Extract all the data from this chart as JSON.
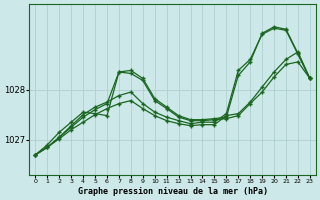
{
  "background_color": "#cce8e8",
  "grid_color": "#aacccc",
  "line_color": "#1a6620",
  "x_ticks": [
    0,
    1,
    2,
    3,
    4,
    5,
    6,
    7,
    8,
    9,
    10,
    11,
    12,
    13,
    14,
    15,
    16,
    17,
    18,
    19,
    20,
    21,
    22,
    23
  ],
  "xlabel": "Graphe pression niveau de la mer (hPa)",
  "y_ticks": [
    1027,
    1028
  ],
  "ylim": [
    1026.3,
    1029.7
  ],
  "xlim": [
    -0.5,
    23.5
  ],
  "series": [
    [
      1026.7,
      1026.85,
      1027.05,
      1027.25,
      1027.45,
      1027.6,
      1027.72,
      1028.35,
      1028.38,
      1028.22,
      1027.82,
      1027.65,
      1027.48,
      1027.4,
      1027.4,
      1027.42,
      1027.45,
      1028.28,
      1028.55,
      1029.12,
      1029.25,
      1029.2,
      1028.72,
      1028.22
    ],
    [
      1026.7,
      1026.85,
      1027.05,
      1027.28,
      1027.5,
      1027.65,
      1027.75,
      1027.88,
      1027.95,
      1027.72,
      1027.55,
      1027.45,
      1027.38,
      1027.32,
      1027.35,
      1027.35,
      1027.52,
      1028.38,
      1028.6,
      1029.1,
      1029.22,
      1029.18,
      1028.7,
      1028.22
    ],
    [
      1026.7,
      1026.85,
      1027.02,
      1027.2,
      1027.35,
      1027.5,
      1027.62,
      1027.72,
      1027.78,
      1027.62,
      1027.48,
      1027.38,
      1027.32,
      1027.28,
      1027.3,
      1027.3,
      1027.48,
      1027.52,
      1027.75,
      1028.05,
      1028.35,
      1028.6,
      1028.75,
      1028.22
    ],
    [
      1026.7,
      1026.9,
      1027.15,
      1027.35,
      1027.55,
      1027.52,
      1027.48,
      1028.35,
      1028.32,
      1028.18,
      1027.78,
      1027.62,
      1027.45,
      1027.38,
      1027.38,
      1027.4,
      1027.42,
      1027.48,
      1027.72,
      1027.95,
      1028.25,
      1028.5,
      1028.55,
      1028.22
    ]
  ]
}
